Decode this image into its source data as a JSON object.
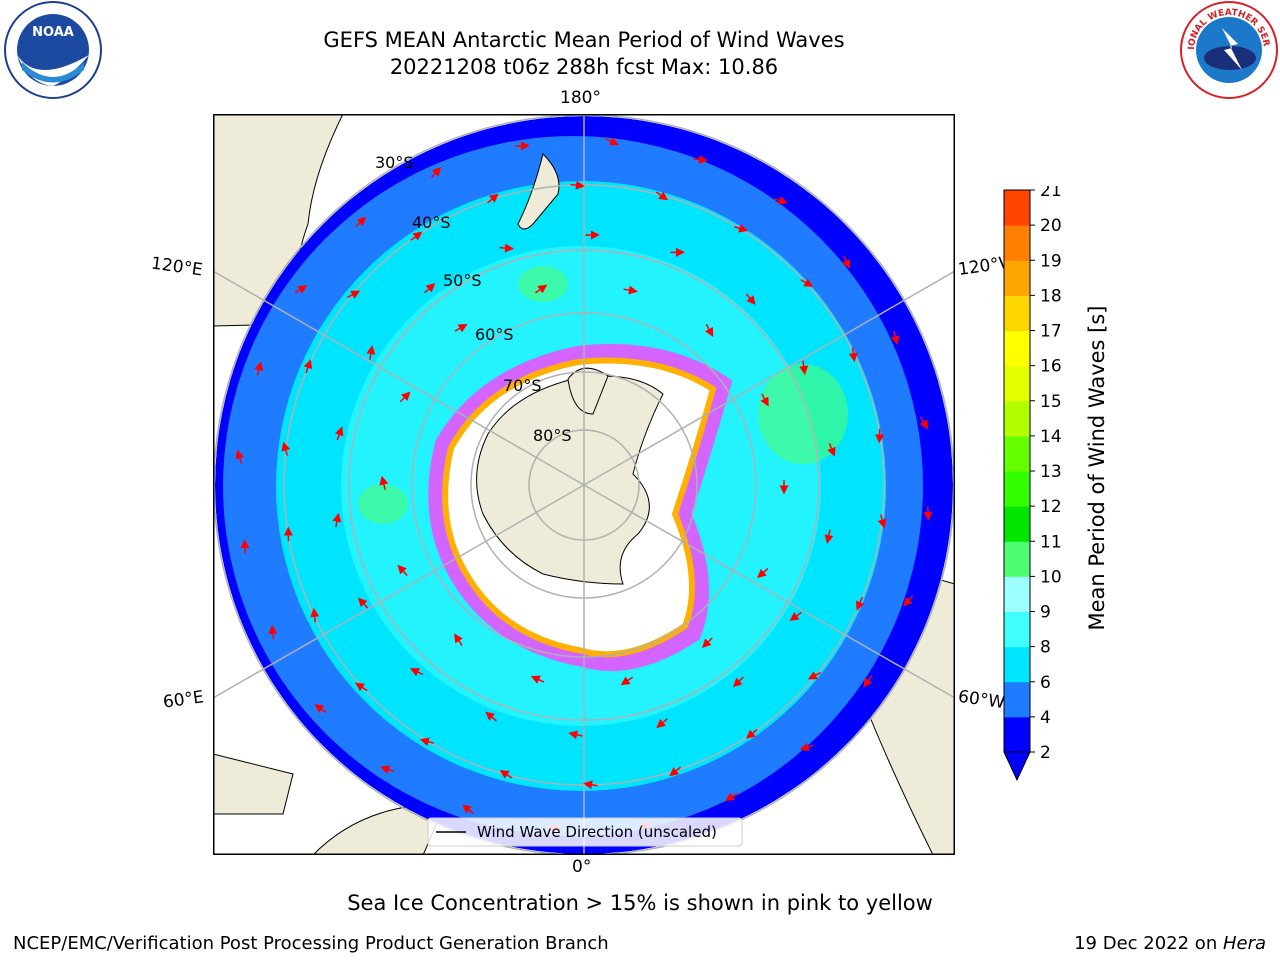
{
  "header": {
    "title_line1": "GEFS MEAN Antarctic Mean Period of Wind Waves",
    "title_line2": "20221208 t06z 288h fcst   Max: 10.86"
  },
  "logos": {
    "left": "NOAA",
    "right": "NATIONAL WEATHER SERVICE"
  },
  "map": {
    "lon_labels": {
      "top": "180°",
      "bottom": "0°",
      "upper_left": "120°E",
      "upper_right": "120°W",
      "lower_left": "60°E",
      "lower_right": "60°W"
    },
    "lat_labels": [
      "30°S",
      "40°S",
      "50°S",
      "60°S",
      "70°S",
      "80°S"
    ],
    "legend_label": "Wind Wave Direction (unscaled)"
  },
  "colorbar": {
    "label": "Mean Period of Wind Waves [s]",
    "ticks": [
      "2",
      "4",
      "6",
      "8",
      "9",
      "10",
      "11",
      "12",
      "13",
      "14",
      "15",
      "16",
      "17",
      "18",
      "19",
      "20",
      "21"
    ],
    "colors": [
      "#0000ff",
      "#1f7bff",
      "#00e5ff",
      "#40ffff",
      "#9dffff",
      "#4dff70",
      "#00e600",
      "#33ff00",
      "#66ff00",
      "#b3ff00",
      "#e6ff00",
      "#ffff00",
      "#ffd700",
      "#ffa500",
      "#ff8000",
      "#ff4500",
      "#ff0000"
    ]
  },
  "caption": "Sea Ice Concentration > 15% is shown in pink to yellow",
  "footer": {
    "left": "NCEP/EMC/Verification Post Processing Product Generation Branch",
    "right_prefix": "19 Dec 2022 on ",
    "right_host": "Hera"
  },
  "colors": {
    "land": "#eeecd9",
    "ocean_dark": "#0000ff",
    "ocean_mid": "#1f7bff",
    "ocean_light": "#00e5ff",
    "arrow": "#ff0000",
    "grid": "#b0b0b0"
  }
}
